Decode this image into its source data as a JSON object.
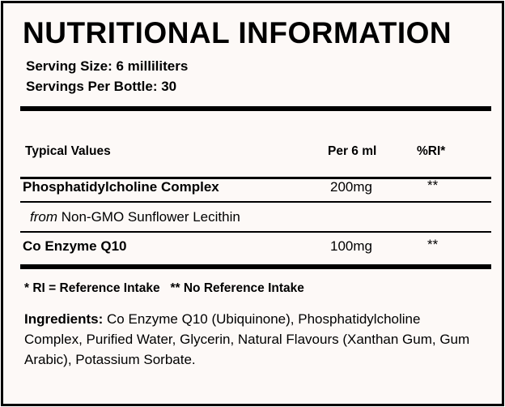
{
  "title": "NUTRITIONAL INFORMATION",
  "serving_size": "Serving Size: 6 milliliters",
  "servings_per_bottle": "Servings Per Bottle: 30",
  "table": {
    "headers": [
      "Typical Values",
      "Per 6 ml",
      "%RI*"
    ],
    "rows": [
      {
        "name": "Phosphatidylcholine Complex",
        "amount": "200mg",
        "ri": "**"
      },
      {
        "prefix": "from",
        "name": "Non-GMO Sunflower Lecithin"
      },
      {
        "name": "Co Enzyme Q10",
        "amount": "100mg",
        "ri": "**"
      }
    ]
  },
  "footnote": "* RI = Reference Intake   ** No Reference Intake",
  "ingredients": {
    "label": "Ingredients:",
    "text": " Co Enzyme Q10 (Ubiquinone), Phosphatidylcholine Complex, Purified Water, Glycerin, Natural Flavours (Xanthan Gum, Gum Arabic), Potassium Sorbate."
  }
}
